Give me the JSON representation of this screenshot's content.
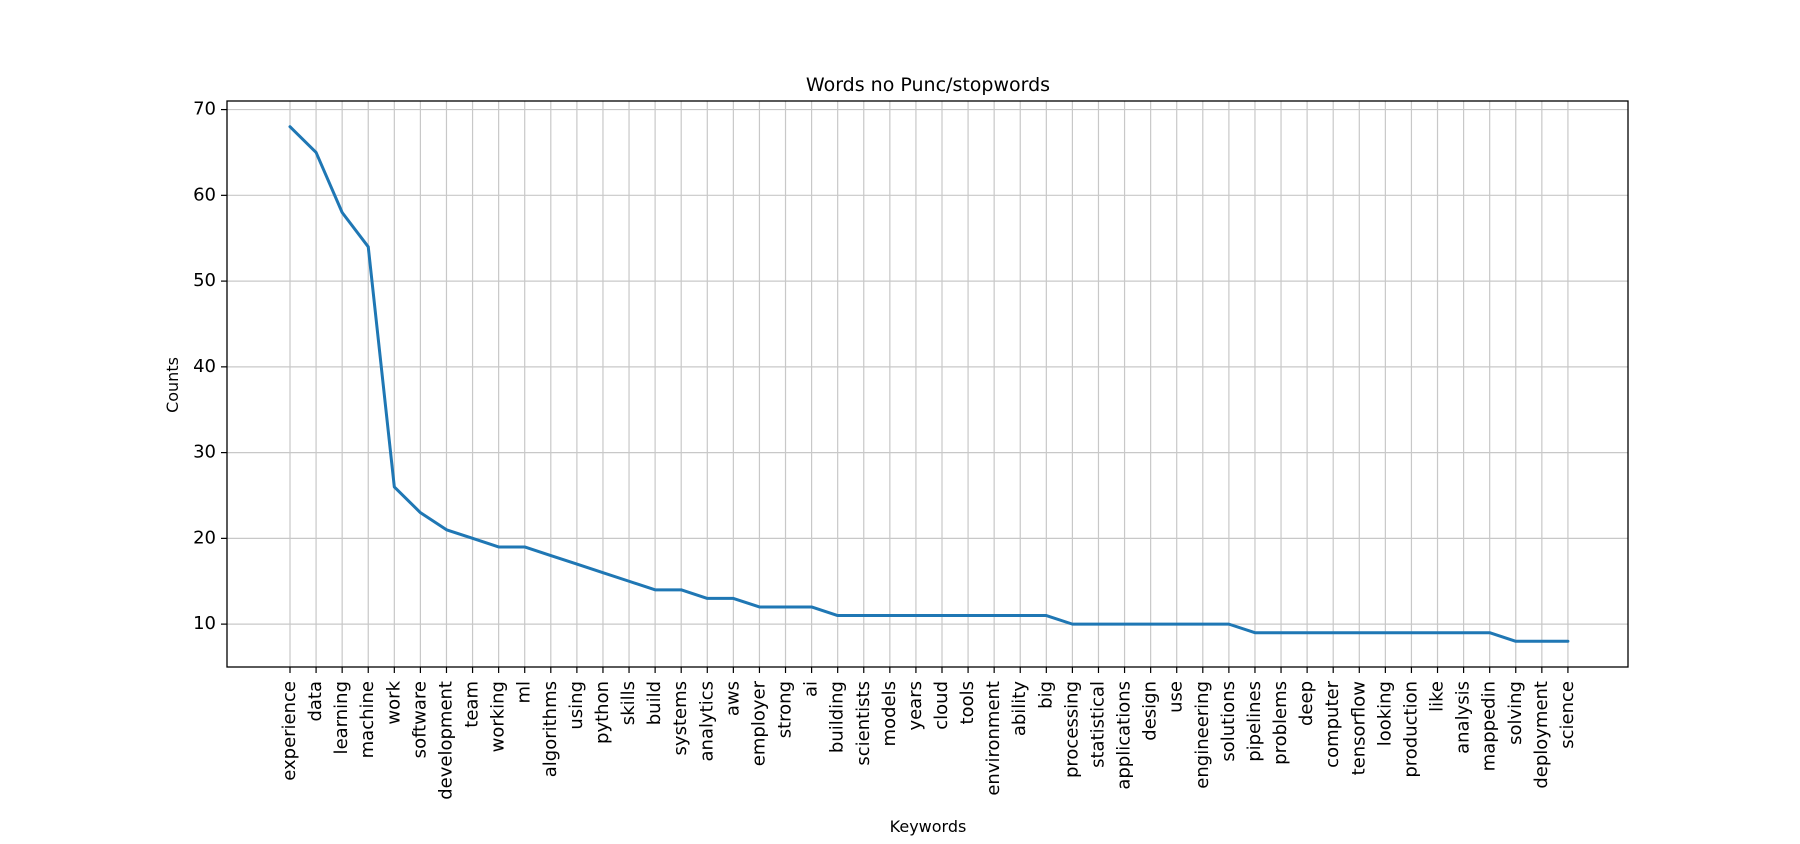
{
  "chart_data": {
    "type": "line",
    "title": "Words no Punc/stopwords",
    "xlabel": "Keywords",
    "ylabel": "Counts",
    "ylim": [
      5,
      71
    ],
    "yticks": [
      10,
      20,
      30,
      40,
      50,
      60,
      70
    ],
    "grid": true,
    "categories": [
      "experience",
      "data",
      "learning",
      "machine",
      "work",
      "software",
      "development",
      "team",
      "working",
      "ml",
      "algorithms",
      "using",
      "python",
      "skills",
      "build",
      "systems",
      "analytics",
      "aws",
      "employer",
      "strong",
      "ai",
      "building",
      "scientists",
      "models",
      "years",
      "cloud",
      "tools",
      "environment",
      "ability",
      "big",
      "processing",
      "statistical",
      "applications",
      "design",
      "use",
      "engineering",
      "solutions",
      "pipelines",
      "problems",
      "deep",
      "computer",
      "tensorflow",
      "looking",
      "production",
      "like",
      "analysis",
      "mappedin",
      "solving",
      "deployment",
      "science"
    ],
    "series": [
      {
        "color": "#1f77b4",
        "values": [
          68,
          65,
          58,
          54,
          26,
          23,
          21,
          20,
          19,
          19,
          18,
          17,
          16,
          15,
          14,
          14,
          13,
          13,
          12,
          12,
          12,
          11,
          11,
          11,
          11,
          11,
          11,
          11,
          11,
          11,
          10,
          10,
          10,
          10,
          10,
          10,
          10,
          9,
          9,
          9,
          9,
          9,
          9,
          9,
          9,
          9,
          9,
          8,
          8,
          8
        ]
      }
    ]
  }
}
